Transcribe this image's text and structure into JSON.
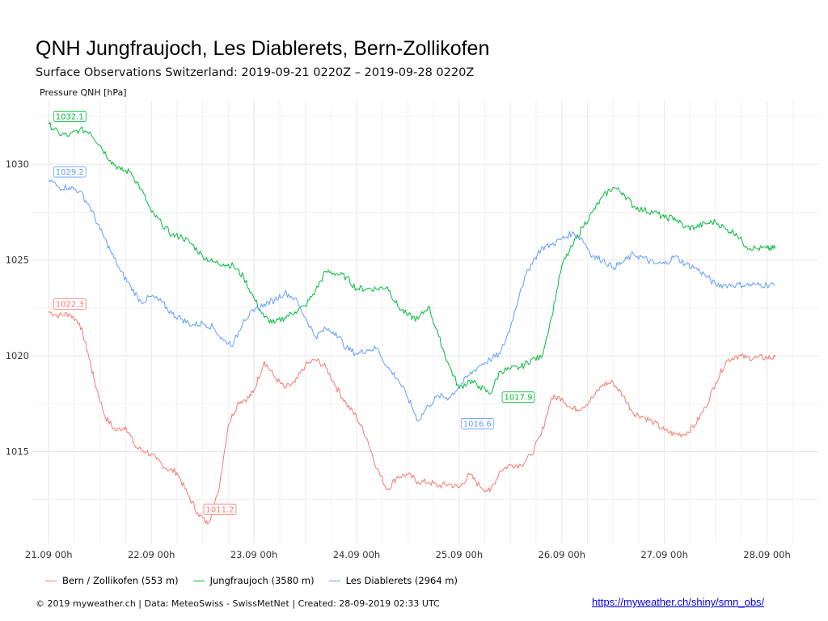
{
  "chart_data": {
    "type": "line",
    "title": "QNH Jungfraujoch, Les Diablerets, Bern-Zollikofen",
    "subtitle": "Surface Observations Switzerland: 2019-09-21 0220Z – 2019-09-28 0220Z",
    "ylabel": "Pressure QNH [hPa]",
    "ylim": [
      1010.2,
      1033.3
    ],
    "xlim": [
      -0.16,
      7.5
    ],
    "yticks": [
      1015,
      1020,
      1025,
      1030
    ],
    "xticks": [
      {
        "value": 0,
        "label": "21.09 00h"
      },
      {
        "value": 1,
        "label": "22.09 00h"
      },
      {
        "value": 2,
        "label": "23.09 00h"
      },
      {
        "value": 3,
        "label": "24.09 00h"
      },
      {
        "value": 4,
        "label": "25.09 00h"
      },
      {
        "value": 5,
        "label": "26.09 00h"
      },
      {
        "value": 6,
        "label": "27.09 00h"
      },
      {
        "value": 7,
        "label": "28.09 00h"
      }
    ],
    "grid": true,
    "legend_position": "bottom",
    "series": [
      {
        "name": "Bern / Zollikofen (553 m)",
        "color": "#f8766d",
        "x": [
          0.0,
          0.1,
          0.2,
          0.3,
          0.38,
          0.45,
          0.55,
          0.65,
          0.75,
          0.85,
          0.95,
          1.05,
          1.15,
          1.25,
          1.35,
          1.45,
          1.55,
          1.65,
          1.75,
          1.85,
          1.95,
          2.0,
          2.1,
          2.2,
          2.3,
          2.4,
          2.5,
          2.6,
          2.7,
          2.8,
          2.9,
          3.0,
          3.1,
          3.2,
          3.3,
          3.4,
          3.5,
          3.6,
          3.7,
          3.8,
          3.9,
          4.0,
          4.1,
          4.2,
          4.3,
          4.4,
          4.5,
          4.6,
          4.7,
          4.8,
          4.9,
          5.0,
          5.1,
          5.2,
          5.3,
          5.4,
          5.5,
          5.6,
          5.7,
          5.8,
          5.9,
          6.0,
          6.1,
          6.2,
          6.3,
          6.4,
          6.5,
          6.6,
          6.7,
          6.8,
          6.9,
          7.0,
          7.08
        ],
        "values": [
          1022.3,
          1022.1,
          1022.2,
          1021.7,
          1020.2,
          1018.6,
          1016.8,
          1016.1,
          1016.3,
          1015.2,
          1015.0,
          1014.6,
          1014.1,
          1013.9,
          1012.8,
          1011.8,
          1011.2,
          1012.8,
          1016.4,
          1017.6,
          1017.8,
          1018.2,
          1019.7,
          1018.9,
          1018.3,
          1018.6,
          1019.5,
          1019.8,
          1019.4,
          1018.4,
          1017.5,
          1016.8,
          1015.7,
          1014.1,
          1013.0,
          1013.7,
          1013.8,
          1013.4,
          1013.4,
          1013.2,
          1013.3,
          1013.1,
          1013.8,
          1013.2,
          1012.9,
          1014.0,
          1014.3,
          1014.3,
          1014.8,
          1015.9,
          1017.8,
          1017.8,
          1017.2,
          1017.3,
          1017.8,
          1018.5,
          1018.6,
          1017.9,
          1017.0,
          1016.8,
          1016.5,
          1016.1,
          1015.9,
          1015.9,
          1016.4,
          1017.3,
          1018.6,
          1019.7,
          1020.0,
          1019.9,
          1019.9,
          1019.9,
          1019.9
        ]
      },
      {
        "name": "Jungfraujoch (3580 m)",
        "color": "#00ba38",
        "x": [
          0.0,
          0.1,
          0.2,
          0.3,
          0.4,
          0.5,
          0.6,
          0.7,
          0.8,
          0.9,
          1.0,
          1.1,
          1.2,
          1.3,
          1.4,
          1.5,
          1.6,
          1.7,
          1.8,
          1.9,
          2.0,
          2.1,
          2.2,
          2.3,
          2.4,
          2.5,
          2.6,
          2.7,
          2.8,
          2.9,
          3.0,
          3.1,
          3.2,
          3.3,
          3.4,
          3.5,
          3.6,
          3.7,
          3.8,
          3.9,
          4.0,
          4.1,
          4.2,
          4.3,
          4.4,
          4.5,
          4.6,
          4.7,
          4.8,
          4.9,
          5.0,
          5.1,
          5.2,
          5.3,
          5.4,
          5.5,
          5.6,
          5.7,
          5.8,
          5.9,
          6.0,
          6.1,
          6.2,
          6.3,
          6.4,
          6.5,
          6.6,
          6.7,
          6.8,
          6.9,
          7.0,
          7.08
        ],
        "values": [
          1032.1,
          1031.6,
          1031.5,
          1031.8,
          1031.7,
          1031.0,
          1030.2,
          1029.7,
          1029.6,
          1028.7,
          1027.5,
          1026.9,
          1026.3,
          1026.2,
          1025.8,
          1025.2,
          1024.9,
          1024.8,
          1024.7,
          1024.1,
          1023.0,
          1022.0,
          1021.7,
          1022.0,
          1022.3,
          1022.6,
          1023.4,
          1024.4,
          1024.3,
          1024.1,
          1023.5,
          1023.5,
          1023.5,
          1023.6,
          1022.6,
          1022.1,
          1021.9,
          1022.6,
          1021.0,
          1019.5,
          1018.3,
          1018.7,
          1018.4,
          1018.0,
          1019.2,
          1019.3,
          1019.4,
          1019.8,
          1019.9,
          1022.0,
          1024.7,
          1025.7,
          1026.7,
          1027.5,
          1028.3,
          1028.8,
          1028.5,
          1027.8,
          1027.6,
          1027.5,
          1027.2,
          1027.2,
          1026.7,
          1026.7,
          1026.9,
          1027.0,
          1026.6,
          1026.4,
          1025.7,
          1025.6,
          1025.6,
          1025.6
        ]
      },
      {
        "name": "Les Diablerets (2964 m)",
        "color": "#619cff",
        "x": [
          0.0,
          0.1,
          0.2,
          0.3,
          0.4,
          0.5,
          0.6,
          0.7,
          0.8,
          0.9,
          1.0,
          1.1,
          1.2,
          1.3,
          1.4,
          1.5,
          1.6,
          1.7,
          1.8,
          1.9,
          2.0,
          2.1,
          2.2,
          2.3,
          2.4,
          2.5,
          2.6,
          2.7,
          2.8,
          2.9,
          3.0,
          3.1,
          3.2,
          3.3,
          3.4,
          3.5,
          3.6,
          3.7,
          3.8,
          3.9,
          4.0,
          4.1,
          4.2,
          4.3,
          4.4,
          4.5,
          4.6,
          4.7,
          4.8,
          4.9,
          5.0,
          5.1,
          5.2,
          5.3,
          5.4,
          5.5,
          5.6,
          5.7,
          5.8,
          5.9,
          6.0,
          6.1,
          6.2,
          6.3,
          6.4,
          6.5,
          6.6,
          6.7,
          6.8,
          6.9,
          7.0,
          7.08
        ],
        "values": [
          1029.2,
          1028.8,
          1028.8,
          1028.6,
          1027.8,
          1026.6,
          1025.5,
          1024.4,
          1023.6,
          1022.8,
          1023.1,
          1022.8,
          1022.2,
          1021.9,
          1021.6,
          1021.7,
          1021.5,
          1020.8,
          1020.6,
          1021.9,
          1022.3,
          1022.7,
          1022.9,
          1023.3,
          1023.0,
          1022.0,
          1021.0,
          1021.4,
          1021.2,
          1020.4,
          1020.1,
          1020.3,
          1020.4,
          1019.4,
          1018.8,
          1017.8,
          1016.6,
          1017.4,
          1017.9,
          1017.8,
          1018.4,
          1019.0,
          1019.5,
          1019.8,
          1020.1,
          1021.5,
          1023.5,
          1024.8,
          1025.6,
          1025.8,
          1026.1,
          1026.4,
          1026.1,
          1025.2,
          1025.0,
          1024.6,
          1024.9,
          1025.3,
          1025.1,
          1024.8,
          1024.8,
          1025.2,
          1024.8,
          1024.6,
          1024.2,
          1023.7,
          1023.7,
          1023.7,
          1023.7,
          1023.7,
          1023.7,
          1023.7
        ]
      }
    ],
    "annotations": [
      {
        "text": "1032.1",
        "x": 0.0,
        "y": 1032.1,
        "series": 1
      },
      {
        "text": "1029.2",
        "x": 0.0,
        "y": 1029.2,
        "series": 2
      },
      {
        "text": "1022.3",
        "x": 0.0,
        "y": 1022.3,
        "series": 0
      },
      {
        "text": "1011.2",
        "x": 1.55,
        "y": 1011.2,
        "series": 0
      },
      {
        "text": "1016.6",
        "x": 4.2,
        "y": 1016.6,
        "series": 2
      },
      {
        "text": "1017.9",
        "x": 4.6,
        "y": 1017.9,
        "series": 1
      }
    ]
  },
  "footer": {
    "credits": "© 2019 myweather.ch | Data: MeteoSwiss - SwissMetNet | Created: 28-09-2019 02:33 UTC",
    "link": "https://myweather.ch/shiny/smn_obs/"
  }
}
